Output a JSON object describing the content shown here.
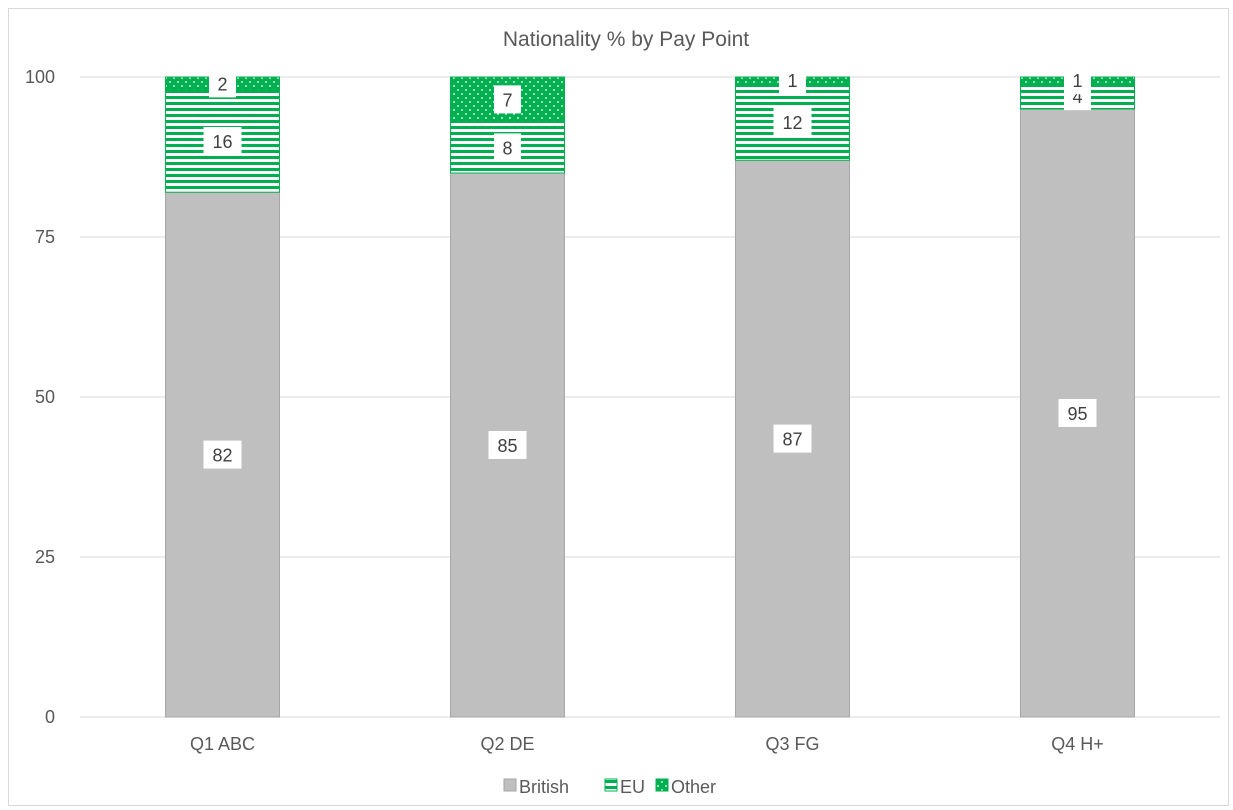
{
  "chart_data": {
    "type": "bar",
    "stacked": true,
    "title": "Nationality % by Pay Point",
    "categories": [
      "Q1 ABC",
      "Q2 DE",
      "Q3 FG",
      "Q4 H+"
    ],
    "series": [
      {
        "name": "British",
        "values": [
          82,
          85,
          87,
          95
        ],
        "color": "#bfbfbf",
        "pattern": "solid"
      },
      {
        "name": "EU",
        "values": [
          16,
          8,
          12,
          4
        ],
        "color": "#00b050",
        "pattern": "horizontal-lines"
      },
      {
        "name": "Other",
        "values": [
          2,
          7,
          1,
          1
        ],
        "color": "#00b050",
        "pattern": "dots"
      }
    ],
    "ylim": [
      0,
      100
    ],
    "yticks": [
      0,
      25,
      50,
      75,
      100
    ],
    "grid": true,
    "legend_position": "bottom",
    "xlabel": "",
    "ylabel": ""
  }
}
